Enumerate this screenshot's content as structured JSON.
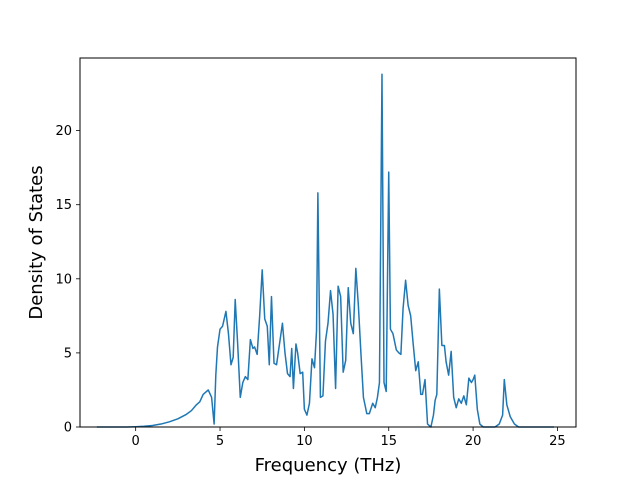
{
  "chart_data": {
    "type": "line",
    "xlabel": "Frequency (THz)",
    "ylabel": "Density of States",
    "xlim": [
      -3.3,
      26.1
    ],
    "ylim": [
      0,
      24.9
    ],
    "xticks": [
      0,
      5,
      10,
      15,
      20,
      25
    ],
    "yticks": [
      0,
      5,
      10,
      15,
      20
    ],
    "grid": false,
    "legend": "none",
    "color": "#1f77b4",
    "series": [
      {
        "x": [
          -2.3,
          -1.5,
          -1.0,
          -0.5,
          0.0,
          0.5,
          1.0,
          1.5,
          2.0,
          2.5,
          3.0,
          3.3,
          3.6,
          3.8,
          4.0,
          4.2,
          4.3,
          4.5,
          4.65,
          4.75,
          4.85,
          5.0,
          5.15,
          5.35,
          5.5,
          5.65,
          5.78,
          5.9,
          6.05,
          6.2,
          6.35,
          6.5,
          6.65,
          6.8,
          6.95,
          7.05,
          7.2,
          7.35,
          7.5,
          7.65,
          7.8,
          7.92,
          8.05,
          8.2,
          8.35,
          8.55,
          8.7,
          8.85,
          9.0,
          9.15,
          9.25,
          9.35,
          9.5,
          9.6,
          9.75,
          9.9,
          10.0,
          10.15,
          10.3,
          10.45,
          10.6,
          10.72,
          10.8,
          10.95,
          11.1,
          11.25,
          11.4,
          11.55,
          11.7,
          11.85,
          12.0,
          12.15,
          12.3,
          12.45,
          12.6,
          12.75,
          12.9,
          13.05,
          13.2,
          13.35,
          13.5,
          13.7,
          13.85,
          14.05,
          14.2,
          14.33,
          14.45,
          14.6,
          14.72,
          14.85,
          15.0,
          15.1,
          15.25,
          15.45,
          15.6,
          15.72,
          15.85,
          16.0,
          16.15,
          16.3,
          16.45,
          16.6,
          16.75,
          16.9,
          17.0,
          17.15,
          17.3,
          17.5,
          17.65,
          17.75,
          17.85,
          18.0,
          18.15,
          18.3,
          18.4,
          18.55,
          18.7,
          18.85,
          19.0,
          19.15,
          19.3,
          19.45,
          19.6,
          19.75,
          19.9,
          20.0,
          20.1,
          20.25,
          20.4,
          20.6,
          21.0,
          21.3,
          21.55,
          21.75,
          21.85,
          22.0,
          22.2,
          22.45,
          22.7,
          23.0,
          23.5,
          24.0,
          24.5,
          24.8
        ],
        "y": [
          0.0,
          0.0,
          0.0,
          0.0,
          0.02,
          0.05,
          0.1,
          0.2,
          0.35,
          0.55,
          0.85,
          1.1,
          1.5,
          1.7,
          2.2,
          2.4,
          2.5,
          2.0,
          0.2,
          3.5,
          5.4,
          6.6,
          6.8,
          7.8,
          6.3,
          4.2,
          4.7,
          8.6,
          5.5,
          2.0,
          3.0,
          3.4,
          3.2,
          5.9,
          5.3,
          5.4,
          4.9,
          7.5,
          10.6,
          7.3,
          6.8,
          4.2,
          8.8,
          4.3,
          4.2,
          5.8,
          7.0,
          5.0,
          3.6,
          3.4,
          5.3,
          2.6,
          5.6,
          5.0,
          3.6,
          3.7,
          1.2,
          0.8,
          1.6,
          4.6,
          4.0,
          6.5,
          15.8,
          2.0,
          2.1,
          5.8,
          7.0,
          9.2,
          7.6,
          2.6,
          9.5,
          8.8,
          3.7,
          4.5,
          9.4,
          7.0,
          6.3,
          10.7,
          8.2,
          5.0,
          2.0,
          0.9,
          0.9,
          1.6,
          1.3,
          2.0,
          3.0,
          23.8,
          3.0,
          2.4,
          17.2,
          6.6,
          6.3,
          5.2,
          5.0,
          4.9,
          8.0,
          9.9,
          8.2,
          7.5,
          5.6,
          3.8,
          4.4,
          2.2,
          2.2,
          3.2,
          0.2,
          0.0,
          0.8,
          1.8,
          2.2,
          9.3,
          5.5,
          5.5,
          4.4,
          3.5,
          5.1,
          2.0,
          1.3,
          1.9,
          1.6,
          2.1,
          1.5,
          3.3,
          3.0,
          3.2,
          3.5,
          1.2,
          0.2,
          0.0,
          0.0,
          0.0,
          0.2,
          0.8,
          3.2,
          1.5,
          0.7,
          0.2,
          0.0,
          0.0,
          0.0,
          0.0,
          0.0,
          0.0
        ]
      }
    ]
  }
}
